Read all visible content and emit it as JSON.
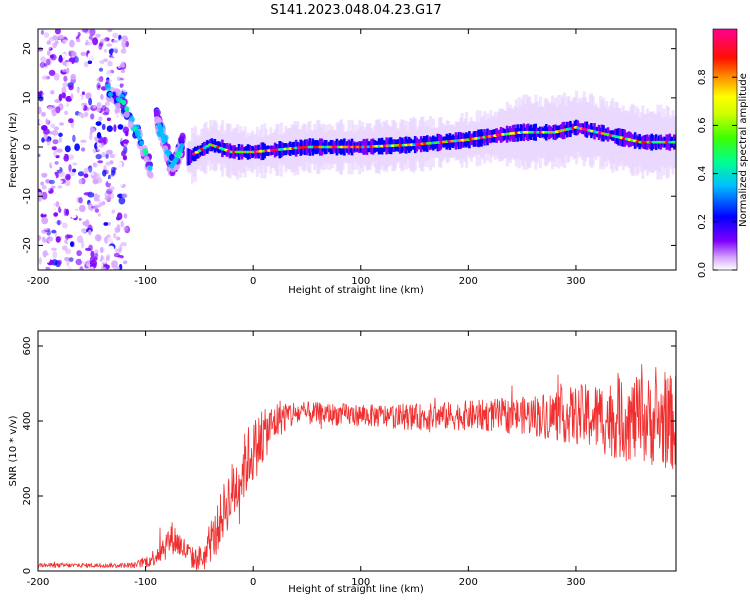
{
  "figure_title": "S141.2023.048.04.23.G17",
  "colors": {
    "snr_line": "#f03030",
    "colormap": [
      "#ffffff",
      "#c070ff",
      "#6000ff",
      "#0000ff",
      "#00c0ff",
      "#00ff80",
      "#40ff00",
      "#ffff00",
      "#ffa000",
      "#ff2000",
      "#ff0090"
    ]
  },
  "chart_data": [
    {
      "type": "heatmap",
      "xlabel": "Height of straight line (km)",
      "ylabel": "Frequency (Hz)",
      "xlim": [
        -200,
        393
      ],
      "ylim": [
        -25,
        24
      ],
      "x_ticks": [
        -200,
        -100,
        0,
        100,
        200,
        300
      ],
      "y_ticks": [
        -20,
        -10,
        0,
        10,
        20
      ],
      "colorbar": {
        "label": "Normalized spectral amplitude",
        "range": [
          0.0,
          1.0
        ],
        "ticks": [
          "0.0",
          "0.2",
          "0.4",
          "0.6",
          "0.8"
        ]
      },
      "ridge": {
        "x": [
          -60,
          -40,
          -20,
          0,
          50,
          100,
          150,
          200,
          230,
          250,
          280,
          300,
          330,
          360,
          393
        ],
        "y": [
          -2,
          0.5,
          -1,
          -1,
          0,
          0,
          0.5,
          1.5,
          2.5,
          3,
          3,
          4,
          2.5,
          1,
          1
        ]
      },
      "diagonal_streaks": [
        {
          "x": [
            -135,
            -120,
            -110,
            -100,
            -95
          ],
          "y": [
            11,
            9,
            4,
            -1,
            -5
          ]
        },
        {
          "x": [
            -90,
            -85,
            -80,
            -76
          ],
          "y": [
            6,
            3,
            -1,
            -4
          ]
        },
        {
          "x": [
            -76,
            -70,
            -65
          ],
          "y": [
            -4,
            -2,
            1
          ]
        }
      ],
      "noise_region": {
        "x_from": -200,
        "x_to": -125
      }
    },
    {
      "type": "line",
      "xlabel": "Height of straight line (km)",
      "ylabel": "SNR (10 * v/v)",
      "xlim": [
        -200,
        393
      ],
      "ylim": [
        0,
        640
      ],
      "x_ticks": [
        -200,
        -100,
        0,
        100,
        200,
        300
      ],
      "y_ticks": [
        0,
        200,
        400,
        600
      ],
      "series": [
        {
          "baseline_x": [
            -200,
            -160,
            -130,
            -110,
            -95,
            -85,
            -75,
            -65,
            -55,
            -45,
            -35,
            -25,
            -15,
            -5,
            5,
            15,
            25,
            40,
            60,
            100,
            150,
            200,
            250,
            300,
            340,
            370,
            393
          ],
          "baseline_y": [
            15,
            15,
            15,
            15,
            30,
            60,
            90,
            60,
            30,
            40,
            100,
            180,
            230,
            300,
            340,
            380,
            410,
            420,
            420,
            415,
            410,
            415,
            415,
            415,
            405,
            400,
            395
          ],
          "noise_amplitude": [
            6,
            6,
            6,
            8,
            20,
            40,
            45,
            35,
            30,
            40,
            60,
            80,
            90,
            90,
            80,
            60,
            50,
            35,
            30,
            30,
            35,
            40,
            50,
            80,
            110,
            120,
            130
          ]
        }
      ]
    }
  ]
}
